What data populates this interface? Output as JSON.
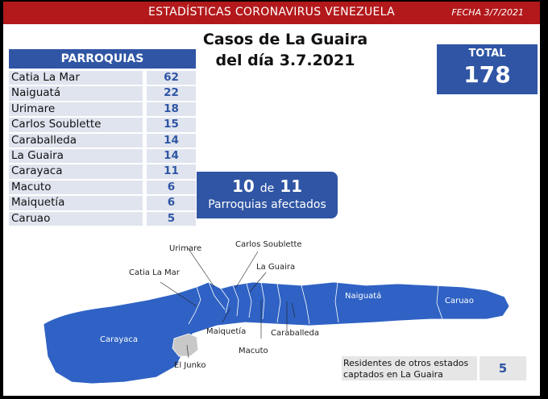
{
  "header": {
    "title": "ESTADÍSTICAS CORONAVIRUS VENEZUELA",
    "date": "FECHA 3/7/2021"
  },
  "report": {
    "title_line1": "Casos de La Guaira",
    "title_line2": "del día 3.7.2021"
  },
  "parroquias": {
    "header": "PARROQUIAS",
    "rows": [
      {
        "name": "Catia La Mar",
        "value": "62"
      },
      {
        "name": "Naiguatá",
        "value": "22"
      },
      {
        "name": "Urimare",
        "value": "18"
      },
      {
        "name": "Carlos Soublette",
        "value": "15"
      },
      {
        "name": "Caraballeda",
        "value": "14"
      },
      {
        "name": "La Guaira",
        "value": "14"
      },
      {
        "name": "Carayaca",
        "value": "11"
      },
      {
        "name": "Macuto",
        "value": "6"
      },
      {
        "name": "Maiquetía",
        "value": "6"
      },
      {
        "name": "Caruao",
        "value": "5"
      }
    ]
  },
  "total": {
    "label": "TOTAL",
    "value": "178"
  },
  "affected": {
    "count": "10",
    "connector": "de",
    "of": "11",
    "label": "Parroquias afectados"
  },
  "map": {
    "labels": {
      "urimare": "Urimare",
      "carlos_soublette": "Carlos Soublette",
      "la_guaira": "La Guaira",
      "catia_la_mar": "Catia La Mar",
      "naiguata": "Naiguatá",
      "caruao": "Caruao",
      "carayaca": "Carayaca",
      "maiquetia": "Maiquetía",
      "caraballeda": "Caraballeda",
      "macuto": "Macuto",
      "el_junko": "El Junko"
    },
    "colors": {
      "affected": "#2f62c4",
      "unaffected": "#c8c8c8"
    }
  },
  "residents": {
    "label_line1": "Residentes de otros estados",
    "label_line2": "captados en La Guaira",
    "value": "5"
  }
}
